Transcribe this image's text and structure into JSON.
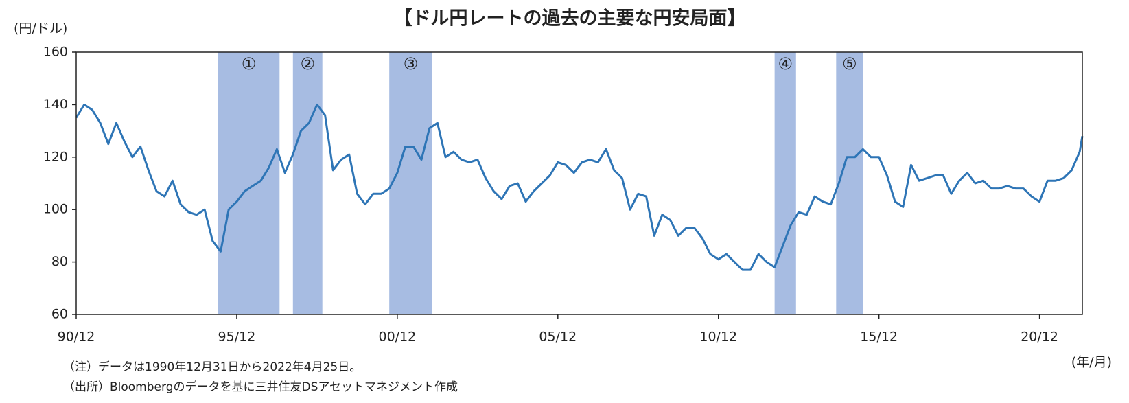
{
  "chart_data": {
    "type": "line",
    "title": "【ドル円レートの過去の主要な円安局面】",
    "y_label": "(円/ドル)",
    "x_label": "(年/月)",
    "notes": [
      "（注）データは1990年12月31日から2022年4月25日。",
      "（出所）Bloombergのデータを基に三井住友DSアセットマネジメント作成"
    ],
    "color": "#2e75b6",
    "shade_color": "#a7bce2",
    "x": [
      "1990-12",
      "1991-03",
      "1991-06",
      "1991-09",
      "1991-12",
      "1992-03",
      "1992-06",
      "1992-09",
      "1992-12",
      "1993-03",
      "1993-06",
      "1993-09",
      "1993-12",
      "1994-03",
      "1994-06",
      "1994-09",
      "1994-12",
      "1995-03",
      "1995-06",
      "1995-09",
      "1995-12",
      "1996-03",
      "1996-06",
      "1996-09",
      "1996-12",
      "1997-03",
      "1997-06",
      "1997-09",
      "1997-12",
      "1998-03",
      "1998-06",
      "1998-09",
      "1998-12",
      "1999-03",
      "1999-06",
      "1999-09",
      "1999-12",
      "2000-03",
      "2000-06",
      "2000-09",
      "2000-12",
      "2001-03",
      "2001-06",
      "2001-09",
      "2001-12",
      "2002-03",
      "2002-06",
      "2002-09",
      "2002-12",
      "2003-03",
      "2003-06",
      "2003-09",
      "2003-12",
      "2004-03",
      "2004-06",
      "2004-09",
      "2004-12",
      "2005-03",
      "2005-06",
      "2005-09",
      "2005-12",
      "2006-03",
      "2006-06",
      "2006-09",
      "2006-12",
      "2007-03",
      "2007-06",
      "2007-09",
      "2007-12",
      "2008-03",
      "2008-06",
      "2008-09",
      "2008-12",
      "2009-03",
      "2009-06",
      "2009-09",
      "2009-12",
      "2010-03",
      "2010-06",
      "2010-09",
      "2010-12",
      "2011-03",
      "2011-06",
      "2011-09",
      "2011-12",
      "2012-03",
      "2012-06",
      "2012-09",
      "2012-12",
      "2013-03",
      "2013-06",
      "2013-09",
      "2013-12",
      "2014-03",
      "2014-06",
      "2014-09",
      "2014-12",
      "2015-03",
      "2015-06",
      "2015-09",
      "2015-12",
      "2016-03",
      "2016-06",
      "2016-09",
      "2016-12",
      "2017-03",
      "2017-06",
      "2017-09",
      "2017-12",
      "2018-03",
      "2018-06",
      "2018-09",
      "2018-12",
      "2019-03",
      "2019-06",
      "2019-09",
      "2019-12",
      "2020-03",
      "2020-06",
      "2020-09",
      "2020-12",
      "2021-03",
      "2021-06",
      "2021-09",
      "2021-12",
      "2022-03",
      "2022-04"
    ],
    "values": [
      135,
      140,
      138,
      133,
      125,
      133,
      126,
      120,
      124,
      115,
      107,
      105,
      111,
      102,
      99,
      98,
      100,
      88,
      84,
      100,
      103,
      107,
      109,
      111,
      116,
      123,
      114,
      121,
      130,
      133,
      140,
      136,
      115,
      119,
      121,
      106,
      102,
      106,
      106,
      108,
      114,
      124,
      124,
      119,
      131,
      133,
      120,
      122,
      119,
      118,
      119,
      112,
      107,
      104,
      109,
      110,
      103,
      107,
      110,
      113,
      118,
      117,
      114,
      118,
      119,
      118,
      123,
      115,
      112,
      100,
      106,
      105,
      90,
      98,
      96,
      90,
      93,
      93,
      89,
      83,
      81,
      83,
      80,
      77,
      77,
      83,
      80,
      78,
      86,
      94,
      99,
      98,
      105,
      103,
      102,
      110,
      120,
      120,
      123,
      120,
      120,
      113,
      103,
      101,
      117,
      111,
      112,
      113,
      113,
      106,
      111,
      114,
      110,
      111,
      108,
      108,
      109,
      108,
      108,
      105,
      103,
      111,
      111,
      112,
      115,
      122,
      128
    ],
    "xlim": [
      "1990-12",
      "2022-04"
    ],
    "xticks": [
      {
        "value": "1990-12",
        "label": "90/12"
      },
      {
        "value": "1995-12",
        "label": "95/12"
      },
      {
        "value": "2000-12",
        "label": "00/12"
      },
      {
        "value": "2005-12",
        "label": "05/12"
      },
      {
        "value": "2010-12",
        "label": "10/12"
      },
      {
        "value": "2015-12",
        "label": "15/12"
      },
      {
        "value": "2020-12",
        "label": "20/12"
      }
    ],
    "ylim": [
      60,
      160
    ],
    "yticks": [
      60,
      80,
      100,
      120,
      140,
      160
    ],
    "shaded_periods": [
      {
        "label": "①",
        "start": "1995-05",
        "end": "1997-04"
      },
      {
        "label": "②",
        "start": "1997-09",
        "end": "1998-08"
      },
      {
        "label": "③",
        "start": "2000-09",
        "end": "2002-01"
      },
      {
        "label": "④",
        "start": "2012-09",
        "end": "2013-05"
      },
      {
        "label": "⑤",
        "start": "2014-08",
        "end": "2015-06"
      }
    ]
  }
}
